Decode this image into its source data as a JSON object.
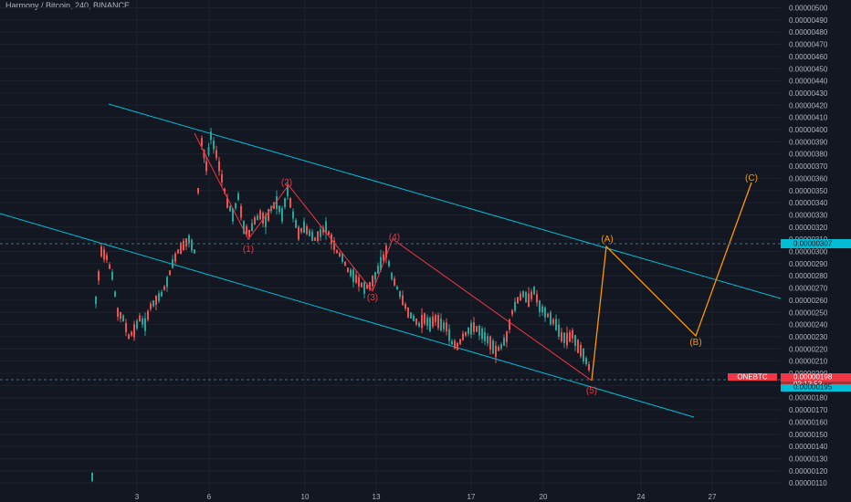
{
  "header": {
    "title": "Harmony / Bitcoin, 240, BINANCE"
  },
  "price_axis": {
    "ticks": [
      "0.00000500",
      "0.00000490",
      "0.00000480",
      "0.00000470",
      "0.00000460",
      "0.00000450",
      "0.00000440",
      "0.00000430",
      "0.00000420",
      "0.00000410",
      "0.00000400",
      "0.00000390",
      "0.00000380",
      "0.00000370",
      "0.00000360",
      "0.00000350",
      "0.00000340",
      "0.00000330",
      "0.00000320",
      "0.00000310",
      "0.00000300",
      "0.00000290",
      "0.00000280",
      "0.00000270",
      "0.00000260",
      "0.00000250",
      "0.00000240",
      "0.00000230",
      "0.00000220",
      "0.00000210",
      "0.00000200",
      "0.00000190",
      "0.00000180",
      "0.00000170",
      "0.00000160",
      "0.00000150",
      "0.00000140",
      "0.00000130",
      "0.00000120",
      "0.00000110"
    ],
    "min": 1.1e-06,
    "max": 5e-06
  },
  "time_axis": {
    "ticks": [
      "3",
      "6",
      "10",
      "13",
      "17",
      "20",
      "24",
      "27"
    ]
  },
  "badges": {
    "target_price": "0.00000307",
    "symbol": "ONEBTC",
    "last_price": "0.00000198",
    "countdown": "02:13:52",
    "low_price": "0.00000195"
  },
  "wave_labels": [
    "(1)",
    "(2)",
    "(3)",
    "(4)",
    "(5)",
    "(A)",
    "(B)",
    "(C)"
  ],
  "colors": {
    "background": "#131722",
    "up": "#26a69a",
    "down": "#ef5350",
    "impulse": "#f23645",
    "correction": "#ff9800",
    "channel": "#00bcd4",
    "grid": "#1e222d",
    "badge_cyan": "#00bcd4",
    "badge_red": "#f23645"
  },
  "chart_data": {
    "type": "candlestick",
    "title": "Harmony / Bitcoin, 240, BINANCE",
    "ylim": [
      1.1e-06,
      5e-06
    ],
    "x_ticks": [
      "3",
      "6",
      "10",
      "13",
      "17",
      "20",
      "24",
      "27"
    ],
    "waves": [
      {
        "label": "(1)",
        "price": 3.1e-06
      },
      {
        "label": "(2)",
        "price": 3.5e-06
      },
      {
        "label": "(3)",
        "price": 2.65e-06
      },
      {
        "label": "(4)",
        "price": 3.05e-06
      },
      {
        "label": "(5)",
        "price": 1.93e-06
      },
      {
        "label": "(A)",
        "price": 3.07e-06
      },
      {
        "label": "(B)",
        "price": 2.33e-06
      },
      {
        "label": "(C)",
        "price": 3.6e-06
      }
    ]
  }
}
